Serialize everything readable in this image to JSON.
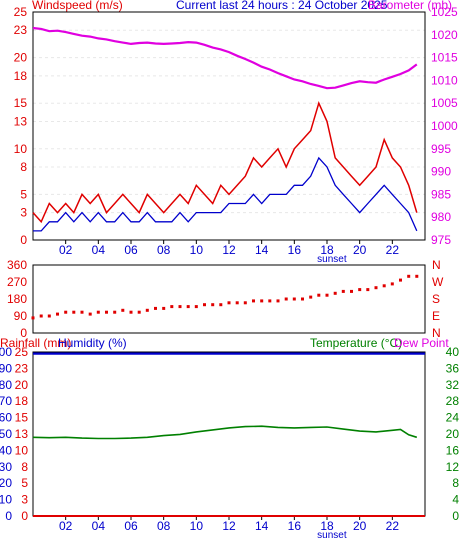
{
  "header": {
    "left_label": "Windspeed (m/s)",
    "center_label": "Current last 24 hours : 24 October 2025",
    "right_label": "Barometer (mb)"
  },
  "hour_labels": [
    "02",
    "04",
    "06",
    "08",
    "10",
    "12",
    "14",
    "16",
    "18",
    "20",
    "22"
  ],
  "sunset_label": "sunset",
  "colors": {
    "wind": "#e00000",
    "gust": "#e00000",
    "avg_wind": "#0000cc",
    "barometer": "#e000e0",
    "direction": "#e00000",
    "rain": "#e00000",
    "humidity": "#0000cc",
    "temperature": "#008000",
    "dewpoint": "#e000e0",
    "frame": "#000000",
    "grid": "#e8e8e8"
  },
  "chart_data": [
    {
      "type": "line",
      "name": "wind_barometer",
      "y_left_ticks": [
        0,
        3,
        5,
        8,
        10,
        13,
        15,
        18,
        20,
        23,
        25
      ],
      "y_left_range": [
        0,
        25
      ],
      "y_right_ticks": [
        975,
        980,
        985,
        990,
        995,
        1000,
        1005,
        1010,
        1015,
        1020,
        1025
      ],
      "y_right_range": [
        975,
        1025
      ],
      "x_range_hours": [
        0,
        24
      ],
      "series": [
        {
          "key": "barometer",
          "axis": "right",
          "x": [
            0,
            0.5,
            1,
            1.5,
            2,
            2.5,
            3,
            3.5,
            4,
            4.5,
            5,
            5.5,
            6,
            6.5,
            7,
            7.5,
            8,
            8.5,
            9,
            9.5,
            10,
            10.5,
            11,
            11.5,
            12,
            12.5,
            13,
            13.5,
            14,
            14.5,
            15,
            15.5,
            16,
            16.5,
            17,
            17.5,
            18,
            18.5,
            19,
            19.5,
            20,
            20.5,
            21,
            21.5,
            22,
            22.5,
            23,
            23.5
          ],
          "values": [
            1021.5,
            1021.3,
            1020.8,
            1020.9,
            1020.6,
            1020.2,
            1019.8,
            1019.6,
            1019.2,
            1019.0,
            1018.6,
            1018.3,
            1018.0,
            1018.2,
            1018.3,
            1018.1,
            1018.0,
            1018.1,
            1018.2,
            1018.4,
            1018.3,
            1017.8,
            1017.2,
            1016.8,
            1016.2,
            1015.4,
            1014.7,
            1013.9,
            1013.0,
            1012.4,
            1011.6,
            1010.9,
            1010.2,
            1009.8,
            1009.2,
            1008.8,
            1008.3,
            1008.4,
            1008.9,
            1009.4,
            1009.8,
            1009.6,
            1009.5,
            1010.2,
            1010.8,
            1011.4,
            1012.2,
            1013.5
          ]
        },
        {
          "key": "wind_gust",
          "axis": "left",
          "x": [
            0,
            0.5,
            1,
            1.5,
            2,
            2.5,
            3,
            3.5,
            4,
            4.5,
            5,
            5.5,
            6,
            6.5,
            7,
            7.5,
            8,
            8.5,
            9,
            9.5,
            10,
            10.5,
            11,
            11.5,
            12,
            12.5,
            13,
            13.5,
            14,
            14.5,
            15,
            15.5,
            16,
            16.5,
            17,
            17.5,
            18,
            18.5,
            19,
            19.5,
            20,
            20.5,
            21,
            21.5,
            22,
            22.5,
            23,
            23.5
          ],
          "values": [
            3,
            2,
            4,
            3,
            4,
            3,
            5,
            4,
            5,
            3,
            4,
            5,
            4,
            3,
            5,
            4,
            3,
            4,
            5,
            4,
            6,
            5,
            4,
            6,
            5,
            6,
            7,
            9,
            8,
            9,
            10,
            8,
            10,
            11,
            12,
            15,
            13,
            9,
            8,
            7,
            6,
            7,
            8,
            11,
            9,
            8,
            6,
            3
          ]
        },
        {
          "key": "wind_avg",
          "axis": "left",
          "x": [
            0,
            0.5,
            1,
            1.5,
            2,
            2.5,
            3,
            3.5,
            4,
            4.5,
            5,
            5.5,
            6,
            6.5,
            7,
            7.5,
            8,
            8.5,
            9,
            9.5,
            10,
            10.5,
            11,
            11.5,
            12,
            12.5,
            13,
            13.5,
            14,
            14.5,
            15,
            15.5,
            16,
            16.5,
            17,
            17.5,
            18,
            18.5,
            19,
            19.5,
            20,
            20.5,
            21,
            21.5,
            22,
            22.5,
            23,
            23.5
          ],
          "values": [
            1,
            1,
            2,
            2,
            3,
            2,
            3,
            2,
            3,
            2,
            2,
            3,
            2,
            2,
            3,
            2,
            2,
            2,
            3,
            2,
            3,
            3,
            3,
            3,
            4,
            4,
            4,
            5,
            4,
            5,
            5,
            5,
            6,
            6,
            7,
            9,
            8,
            6,
            5,
            4,
            3,
            4,
            5,
            6,
            5,
            4,
            3,
            1
          ]
        }
      ]
    },
    {
      "type": "scatter",
      "name": "wind_direction",
      "y_left_ticks": [
        0,
        90,
        180,
        270,
        360
      ],
      "y_left_range": [
        0,
        360
      ],
      "y_right_ticks": [
        "N",
        "E",
        "S",
        "W",
        "N"
      ],
      "x_range_hours": [
        0,
        24
      ],
      "series": [
        {
          "key": "direction",
          "axis": "left",
          "x": [
            0,
            0.5,
            1,
            1.5,
            2,
            2.5,
            3,
            3.5,
            4,
            4.5,
            5,
            5.5,
            6,
            6.5,
            7,
            7.5,
            8,
            8.5,
            9,
            9.5,
            10,
            10.5,
            11,
            11.5,
            12,
            12.5,
            13,
            13.5,
            14,
            14.5,
            15,
            15.5,
            16,
            16.5,
            17,
            17.5,
            18,
            18.5,
            19,
            19.5,
            20,
            20.5,
            21,
            21.5,
            22,
            22.5,
            23,
            23.5
          ],
          "values": [
            80,
            90,
            90,
            100,
            110,
            110,
            110,
            100,
            110,
            110,
            110,
            120,
            110,
            110,
            120,
            130,
            130,
            140,
            140,
            140,
            140,
            150,
            150,
            150,
            160,
            160,
            160,
            170,
            170,
            170,
            170,
            180,
            180,
            180,
            190,
            200,
            200,
            210,
            220,
            220,
            230,
            230,
            240,
            250,
            260,
            280,
            300,
            300
          ]
        }
      ]
    },
    {
      "type": "line",
      "name": "rain_humidity_temperature",
      "y_left_humidity_ticks": [
        0,
        10,
        20,
        30,
        40,
        50,
        60,
        70,
        80,
        90,
        100
      ],
      "y_left_rain_ticks": [
        0,
        3,
        5,
        8,
        10,
        13,
        15,
        18,
        20,
        23,
        25
      ],
      "y_right_ticks": [
        0,
        4,
        8,
        12,
        16,
        20,
        24,
        28,
        32,
        36,
        40
      ],
      "y_left_range": [
        0,
        100
      ],
      "y_right_range": [
        0,
        40
      ],
      "x_range_hours": [
        0,
        24
      ],
      "legend": {
        "rain_label": "Rainfall (mm)",
        "humidity_label": "Humidity (%)",
        "temperature_label": "Temperature (°C)",
        "dewpoint_label": "Dew Point"
      },
      "series": [
        {
          "key": "humidity",
          "axis": "left",
          "x": [
            0,
            24
          ],
          "values": [
            99,
            99
          ]
        },
        {
          "key": "rainfall",
          "axis": "left",
          "x": [
            0,
            24
          ],
          "values": [
            0,
            0
          ]
        },
        {
          "key": "temperature",
          "axis": "right",
          "x": [
            0,
            1,
            2,
            3,
            4,
            5,
            6,
            7,
            8,
            9,
            10,
            11,
            12,
            13,
            14,
            15,
            16,
            17,
            18,
            19,
            20,
            21,
            22,
            22.5,
            23,
            23.5
          ],
          "values": [
            19.2,
            19.1,
            19.2,
            19.0,
            18.9,
            18.9,
            19.0,
            19.2,
            19.6,
            19.9,
            20.5,
            21.0,
            21.5,
            21.8,
            21.9,
            21.6,
            21.5,
            21.6,
            21.7,
            21.2,
            20.7,
            20.5,
            20.9,
            21.1,
            19.8,
            19.2
          ]
        }
      ]
    }
  ]
}
